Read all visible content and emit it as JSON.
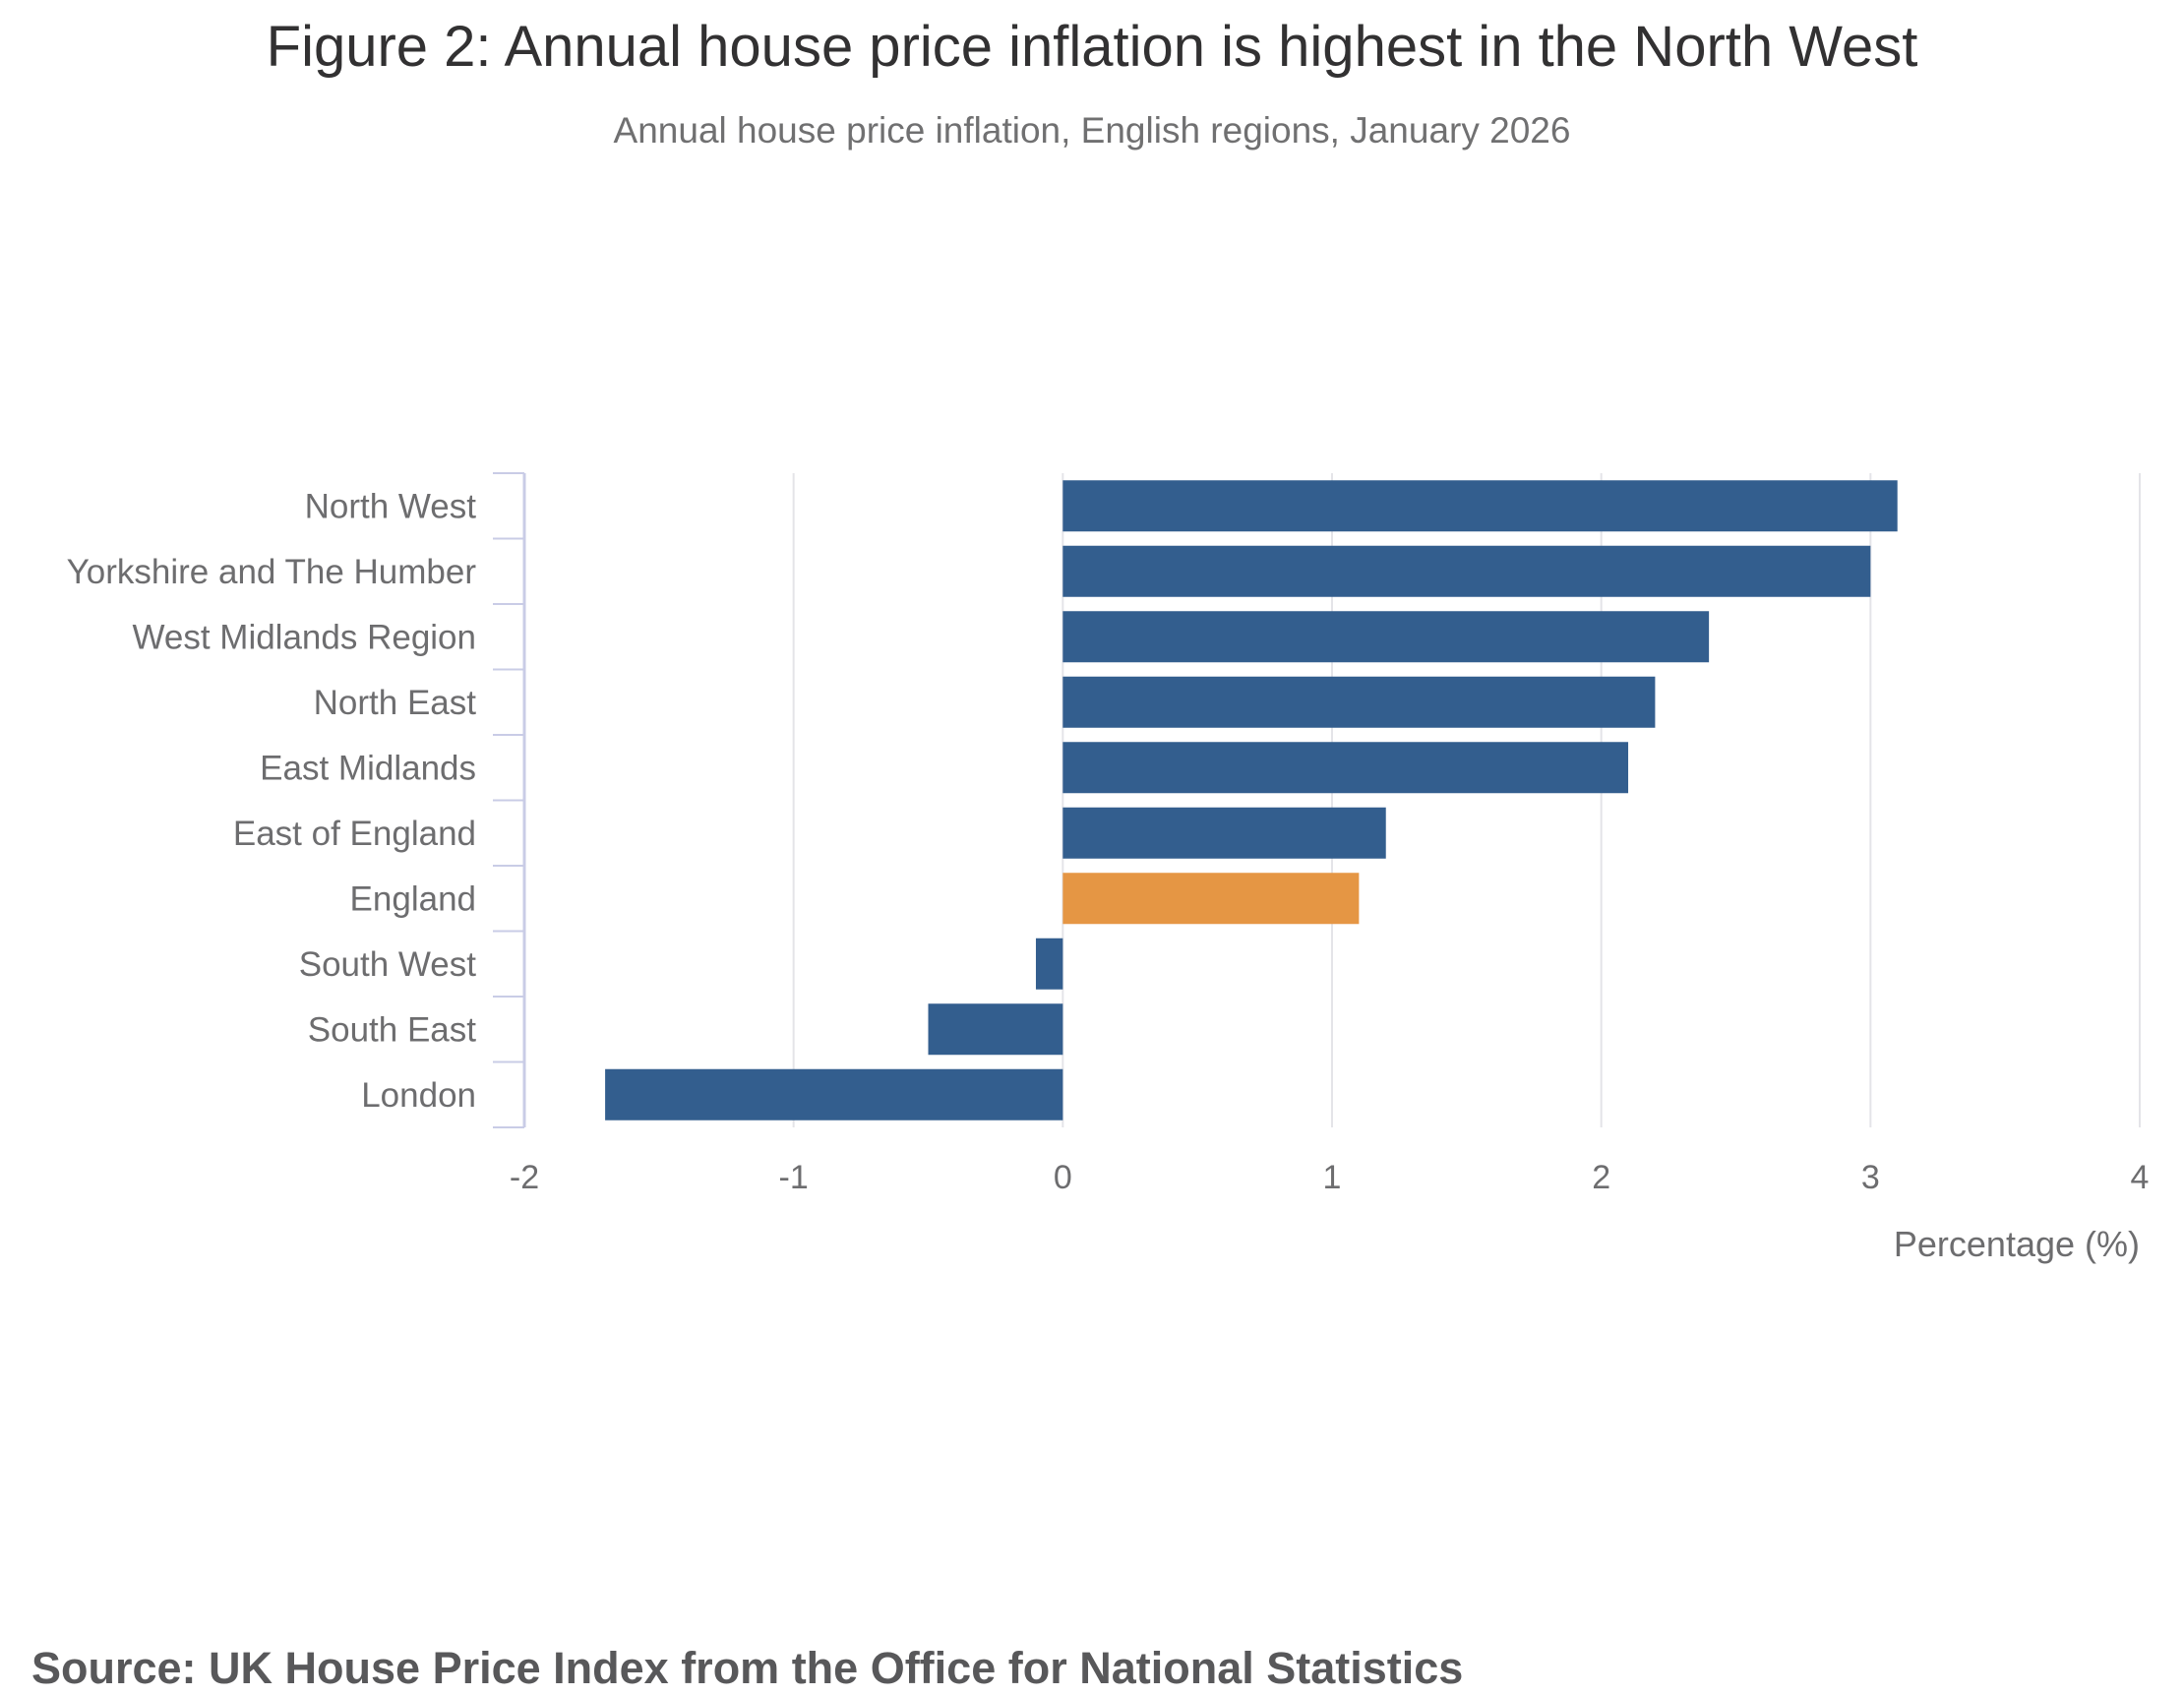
{
  "chart_data": {
    "type": "bar",
    "orientation": "horizontal",
    "title": "Figure 2: Annual house price inflation is highest in the North West",
    "subtitle": "Annual house price inflation, English regions, January 2026",
    "categories": [
      "North West",
      "Yorkshire and The Humber",
      "West Midlands Region",
      "North East",
      "East Midlands",
      "East of England",
      "England",
      "South West",
      "South East",
      "London"
    ],
    "values": [
      3.1,
      3.0,
      2.4,
      2.2,
      2.1,
      1.2,
      1.1,
      -0.1,
      -0.5,
      -1.7
    ],
    "highlight": "England",
    "xlabel": "Percentage (%)",
    "ylabel": "",
    "xlim": [
      -2,
      4
    ],
    "xticks": [
      -2,
      -1,
      0,
      1,
      2,
      3,
      4
    ],
    "grid": true,
    "colors": {
      "bar": "#335E8E",
      "highlight": "#E59644",
      "grid": "#E4E4E8",
      "axis": "#C9CCE6"
    }
  },
  "source": "Source: UK House Price Index from the Office for National Statistics"
}
